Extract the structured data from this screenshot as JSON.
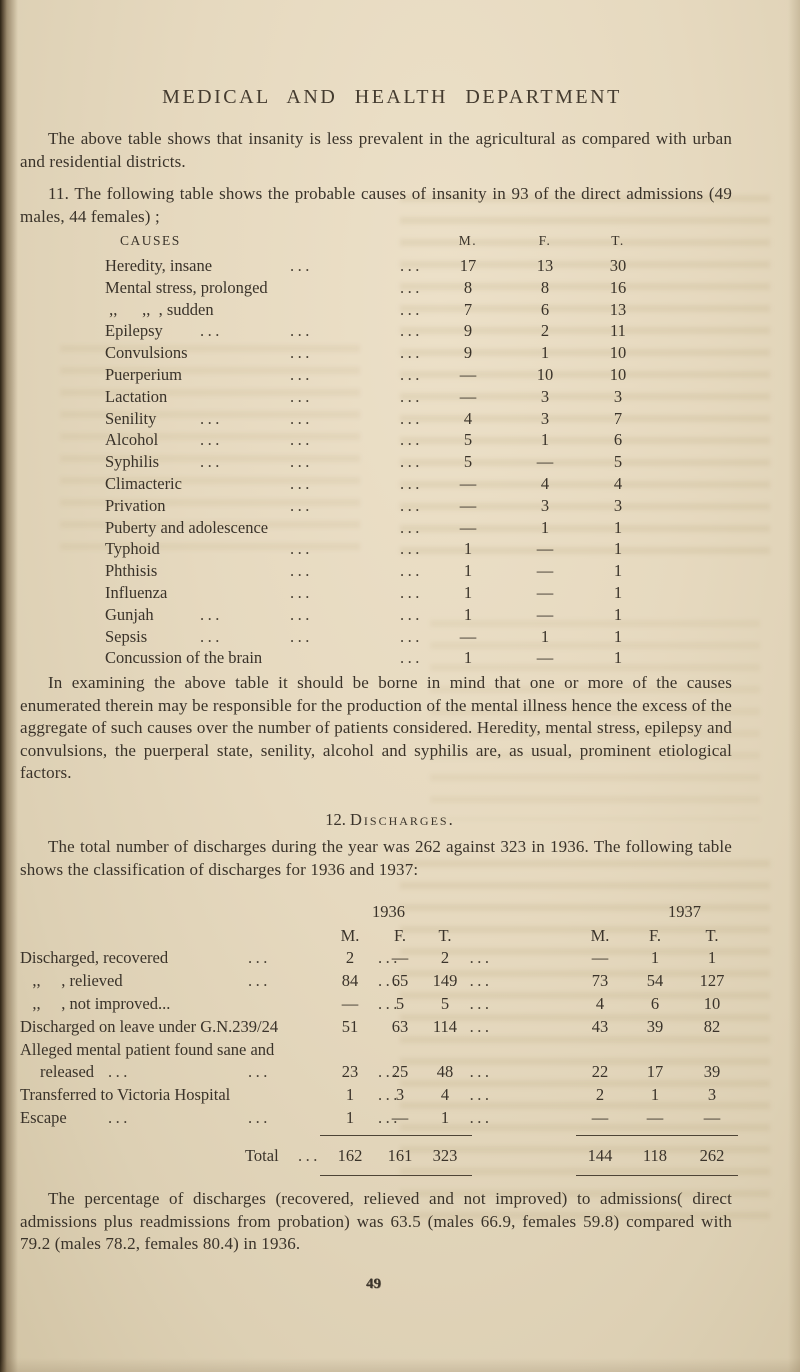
{
  "page": {
    "title": "MEDICAL AND HEALTH DEPARTMENT",
    "number": "49"
  },
  "paragraphs": {
    "intro": "The above table shows that insanity is less prevalent in the agricultural as compared with urban and residential districts.",
    "causes_intro": "11. The following table shows the probable causes of insanity in 93 of the direct admissions (49 males, 44 females) ;",
    "examining": "In examining the above table it should be borne in mind that one or more of the causes enumerated therein may be responsible for the production of the mental illness hence the excess of the aggregate of such causes over the number of patients considered. Heredity, mental stress, epilepsy and convulsions, the puerperal state, senility, alcohol and syphilis are, as usual, prominent etiological factors.",
    "discharges_intro": "The total number of discharges during the year was 262 against 323 in 1936. The following table shows the classification of discharges for 1936 and 1937:",
    "closing": "The percentage of discharges (recovered, relieved and not improved) to admissions( direct admissions plus readmissions from probation) was 63.5 (males 66.9, females 59.8) compared with 79.2 (males 78.2, females 80.4) in 1936."
  },
  "causes_table": {
    "columns": {
      "causes": "CAUSES",
      "m": "M.",
      "f": "F.",
      "t": "T."
    },
    "rows": [
      {
        "label": "Heredity, insane",
        "dots": [
          "",
          "...",
          "..."
        ],
        "m": "17",
        "f": "13",
        "t": "30"
      },
      {
        "label": "Mental stress, prolonged",
        "dots": [
          "",
          "",
          "..."
        ],
        "m": "8",
        "f": "8",
        "t": "16"
      },
      {
        "label": " ,,      ,,  , sudden",
        "dots": [
          "",
          "",
          "..."
        ],
        "m": "7",
        "f": "6",
        "t": "13"
      },
      {
        "label": "Epilepsy",
        "dots": [
          "...",
          "...",
          "..."
        ],
        "m": "9",
        "f": "2",
        "t": "11"
      },
      {
        "label": "Convulsions",
        "dots": [
          "",
          "...",
          "..."
        ],
        "m": "9",
        "f": "1",
        "t": "10"
      },
      {
        "label": "Puerperium",
        "dots": [
          "",
          "...",
          "..."
        ],
        "m": "—",
        "f": "10",
        "t": "10"
      },
      {
        "label": "Lactation",
        "dots": [
          "",
          "...",
          "..."
        ],
        "m": "—",
        "f": "3",
        "t": "3"
      },
      {
        "label": "Senility",
        "dots": [
          "...",
          "...",
          "..."
        ],
        "m": "4",
        "f": "3",
        "t": "7"
      },
      {
        "label": "Alcohol",
        "dots": [
          "...",
          "...",
          "..."
        ],
        "m": "5",
        "f": "1",
        "t": "6"
      },
      {
        "label": "Syphilis",
        "dots": [
          "...",
          "...",
          "..."
        ],
        "m": "5",
        "f": "—",
        "t": "5"
      },
      {
        "label": "Climacteric",
        "dots": [
          "",
          "...",
          "..."
        ],
        "m": "—",
        "f": "4",
        "t": "4"
      },
      {
        "label": "Privation",
        "dots": [
          "",
          "...",
          "..."
        ],
        "m": "—",
        "f": "3",
        "t": "3"
      },
      {
        "label": "Puberty and adolescence",
        "dots": [
          "",
          "",
          "..."
        ],
        "m": "—",
        "f": "1",
        "t": "1"
      },
      {
        "label": "Typhoid",
        "dots": [
          "",
          "...",
          "..."
        ],
        "m": "1",
        "f": "—",
        "t": "1"
      },
      {
        "label": "Phthisis",
        "dots": [
          "",
          "...",
          "..."
        ],
        "m": "1",
        "f": "—",
        "t": "1"
      },
      {
        "label": "Influenza",
        "dots": [
          "",
          "...",
          "..."
        ],
        "m": "1",
        "f": "—",
        "t": "1"
      },
      {
        "label": "Gunjah",
        "dots": [
          "...",
          "...",
          "..."
        ],
        "m": "1",
        "f": "—",
        "t": "1"
      },
      {
        "label": "Sepsis",
        "dots": [
          "...",
          "...",
          "..."
        ],
        "m": "—",
        "f": "1",
        "t": "1"
      },
      {
        "label": "Concussion of the brain",
        "dots": [
          "",
          "",
          "..."
        ],
        "m": "1",
        "f": "—",
        "t": "1"
      }
    ]
  },
  "discharges_section": {
    "heading": {
      "number": "12.",
      "text": "Discharges."
    },
    "table": {
      "years": [
        "1936",
        "1937"
      ],
      "sub_columns": [
        "M.",
        "F.",
        "T."
      ],
      "rows": [
        {
          "label": "Discharged, recovered",
          "dots": [
            "...",
            "..."
          ],
          "sep": "...",
          "y1936": [
            "2",
            "—",
            "2"
          ],
          "y1937": [
            "—",
            "1",
            "1"
          ]
        },
        {
          "label": "   ,,     , relieved",
          "dots": [
            "...",
            "..."
          ],
          "sep": "...",
          "y1936": [
            "84",
            "65",
            "149"
          ],
          "y1937": [
            "73",
            "54",
            "127"
          ]
        },
        {
          "label": "   ,,     , not improved...",
          "dots": [
            "",
            "..."
          ],
          "sep": "...",
          "y1936": [
            "—",
            "5",
            "5"
          ],
          "y1937": [
            "4",
            "6",
            "10"
          ]
        },
        {
          "label": "Discharged on leave under G.N.239/24",
          "dots": [
            "",
            ""
          ],
          "sep": "...",
          "y1936": [
            "51",
            "63",
            "114"
          ],
          "y1937": [
            "43",
            "39",
            "82"
          ]
        },
        {
          "label": "Alleged mental patient found sane and",
          "label2": "released",
          "dots": [
            "...",
            "...",
            "..."
          ],
          "sep": "...",
          "y1936": [
            "23",
            "25",
            "48"
          ],
          "y1937": [
            "22",
            "17",
            "39"
          ]
        },
        {
          "label": "Transferred to Victoria Hospital",
          "dots": [
            "",
            "..."
          ],
          "sep": "...",
          "y1936": [
            "1",
            "3",
            "4"
          ],
          "y1937": [
            "2",
            "1",
            "3"
          ]
        },
        {
          "label": "Escape",
          "dots": [
            "...",
            "...",
            "..."
          ],
          "sep": "...",
          "y1936": [
            "1",
            "—",
            "1"
          ],
          "y1937": [
            "—",
            "—",
            "—"
          ]
        }
      ],
      "total": {
        "label": "Total",
        "leader": "...",
        "y1936": [
          "162",
          "161",
          "323"
        ],
        "y1937": [
          "144",
          "118",
          "262"
        ]
      }
    }
  }
}
